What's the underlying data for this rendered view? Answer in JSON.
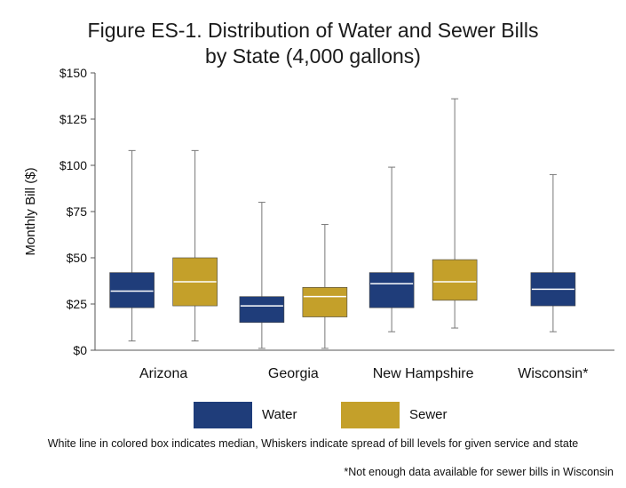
{
  "chart_data": {
    "type": "box",
    "title_line1": "Figure ES-1. Distribution of Water and Sewer Bills",
    "title_line2": "by State (4,000 gallons)",
    "ylabel": "Monthly Bill ($)",
    "ylim": [
      0,
      150
    ],
    "yticks": [
      0,
      25,
      50,
      75,
      100,
      125,
      150
    ],
    "ytick_labels": [
      "$0",
      "$25",
      "$50",
      "$75",
      "$100",
      "$125",
      "$150"
    ],
    "grid": false,
    "legend_position": "bottom",
    "categories": [
      "Arizona",
      "Georgia",
      "New Hampshire",
      "Wisconsin*"
    ],
    "series": [
      {
        "name": "Water",
        "color": "#1f3d7a",
        "boxes": [
          {
            "min": 5,
            "q1": 23,
            "median": 32,
            "q3": 42,
            "max": 108
          },
          {
            "min": 1,
            "q1": 15,
            "median": 24,
            "q3": 29,
            "max": 80
          },
          {
            "min": 10,
            "q1": 23,
            "median": 36,
            "q3": 42,
            "max": 99
          },
          {
            "min": 10,
            "q1": 24,
            "median": 33,
            "q3": 42,
            "max": 95
          }
        ]
      },
      {
        "name": "Sewer",
        "color": "#c4a02a",
        "boxes": [
          {
            "min": 5,
            "q1": 24,
            "median": 37,
            "q3": 50,
            "max": 108
          },
          {
            "min": 1,
            "q1": 18,
            "median": 29,
            "q3": 34,
            "max": 68
          },
          {
            "min": 12,
            "q1": 27,
            "median": 37,
            "q3": 49,
            "max": 136
          },
          null
        ]
      }
    ]
  },
  "legend": {
    "water_label": "Water",
    "sewer_label": "Sewer"
  },
  "notes": {
    "median_note": "White line in colored box indicates median, Whiskers indicate spread of bill levels for given service and state",
    "wisconsin_note": "*Not enough data available for sewer bills in Wisconsin"
  }
}
